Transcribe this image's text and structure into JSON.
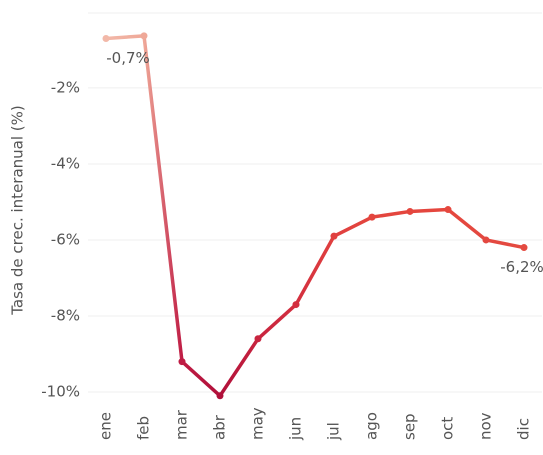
{
  "chart_data": {
    "type": "line",
    "y_label": "Tasa de crec. interanual (%)",
    "categories": [
      "ene",
      "feb",
      "mar",
      "abr",
      "may",
      "jun",
      "jul",
      "ago",
      "sep",
      "oct",
      "nov",
      "dic"
    ],
    "series": [
      {
        "values": [
          -0.7,
          -0.63,
          -9.2,
          -10.1,
          -8.6,
          -7.7,
          -5.9,
          -5.4,
          -5.25,
          -5.2,
          -6.0,
          -6.2
        ],
        "value_labels": [
          "-0,7%",
          null,
          null,
          null,
          null,
          null,
          null,
          null,
          null,
          null,
          null,
          "-6,2%"
        ],
        "colors": [
          "#f2b8a8",
          "#efa898",
          "#bf1c44",
          "#b0103a",
          "#c8243f",
          "#d32f3f",
          "#e0403f",
          "#e3453e",
          "#e4463e",
          "#e5473e",
          "#e34840",
          "#e44a40"
        ]
      }
    ],
    "ylim": [
      -10.5,
      0.05
    ],
    "yticks": [
      {
        "value": -10,
        "label": "-10%"
      },
      {
        "value": -8,
        "label": "-8%"
      },
      {
        "value": -6,
        "label": "-6%"
      },
      {
        "value": -4,
        "label": "-4%"
      },
      {
        "value": -2,
        "label": "-2%"
      }
    ],
    "grid": true
  }
}
